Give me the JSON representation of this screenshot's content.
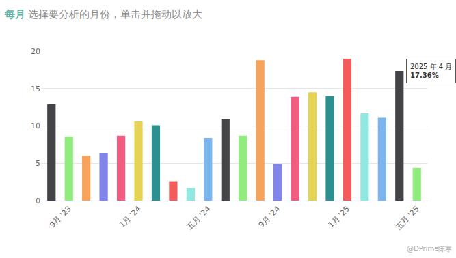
{
  "chart_data": {
    "type": "bar",
    "title": "每月",
    "subtitle": "选择要分析的月份，单击并拖动以放大",
    "categories": [
      null,
      "9月 '23",
      null,
      null,
      null,
      "1月 '24",
      null,
      null,
      null,
      "五月 '24",
      null,
      null,
      null,
      "9月 '24",
      null,
      null,
      null,
      "1月 '25",
      null,
      null,
      null,
      "五月 '25"
    ],
    "values": [
      12.9,
      8.6,
      6.0,
      6.4,
      8.7,
      10.6,
      10.1,
      2.6,
      1.7,
      8.4,
      10.9,
      8.7,
      18.8,
      4.9,
      13.9,
      14.5,
      14.0,
      19.0,
      11.7,
      11.1,
      17.36,
      4.4
    ],
    "colors": [
      "#434348",
      "#90ed7d",
      "#f7a35c",
      "#8085e9",
      "#f15c80",
      "#e4d354",
      "#2b908f",
      "#f45b5b",
      "#91e8e1",
      "#7cb5ec",
      "#434348",
      "#90ed7d",
      "#f7a35c",
      "#8085e9",
      "#f15c80",
      "#e4d354",
      "#2b908f",
      "#f45b5b",
      "#91e8e1",
      "#7cb5ec",
      "#434348",
      "#90ed7d"
    ],
    "ylim": [
      0,
      20
    ],
    "yticks": [
      0,
      5,
      10,
      15,
      20
    ],
    "grid": true,
    "annotations": [
      {
        "category_index": 20,
        "text": "2025 年 4 月",
        "value": 17.36,
        "label": "17.36%"
      }
    ],
    "watermark": "@DPrime陈寒"
  }
}
